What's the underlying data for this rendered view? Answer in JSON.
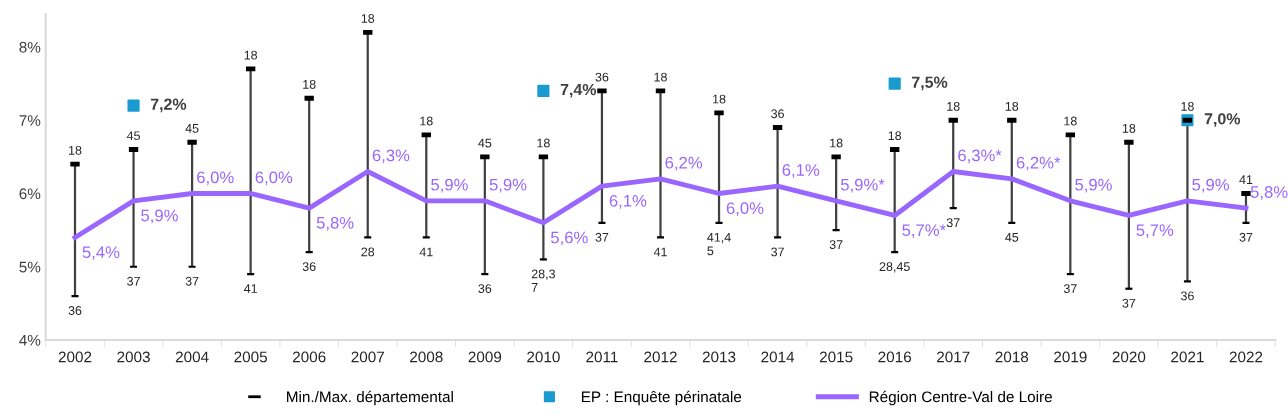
{
  "chart_data": {
    "type": "line",
    "categories": [
      "2002",
      "2003",
      "2004",
      "2005",
      "2006",
      "2007",
      "2008",
      "2009",
      "2010",
      "2011",
      "2012",
      "2013",
      "2014",
      "2015",
      "2016",
      "2017",
      "2018",
      "2019",
      "2020",
      "2021",
      "2022"
    ],
    "series": [
      {
        "name": "EP : Enquête périnatale",
        "type": "scatter",
        "marker": "square",
        "color": "#1a9bd0",
        "values": [
          null,
          7.2,
          null,
          null,
          null,
          null,
          null,
          null,
          7.4,
          null,
          null,
          null,
          null,
          null,
          7.5,
          null,
          null,
          null,
          null,
          7.0,
          null
        ],
        "value_labels": [
          null,
          "7,2%",
          null,
          null,
          null,
          null,
          null,
          null,
          "7,4%",
          null,
          null,
          null,
          null,
          null,
          "7,5%",
          null,
          null,
          null,
          null,
          "7,0%",
          null
        ]
      },
      {
        "name": "Région Centre-Val de Loire",
        "marker": "none",
        "color": "#9966ff",
        "values": [
          5.4,
          5.9,
          6.0,
          6.0,
          5.8,
          6.3,
          5.9,
          5.9,
          5.6,
          6.1,
          6.2,
          6.0,
          6.1,
          5.9,
          5.7,
          6.3,
          6.2,
          5.9,
          5.7,
          5.9,
          5.8
        ],
        "errors": [
          [
            4.6,
            6.4
          ],
          [
            5.0,
            6.6
          ],
          [
            5.0,
            6.7
          ],
          [
            4.9,
            7.7
          ],
          [
            5.2,
            7.3
          ],
          [
            5.4,
            8.2
          ],
          [
            5.4,
            6.8
          ],
          [
            4.9,
            6.5
          ],
          [
            5.1,
            6.5
          ],
          [
            5.6,
            7.4
          ],
          [
            5.4,
            7.4
          ],
          [
            5.6,
            7.1
          ],
          [
            5.4,
            6.9
          ],
          [
            5.5,
            6.5
          ],
          [
            5.2,
            6.6
          ],
          [
            5.8,
            7.0
          ],
          [
            5.6,
            7.0
          ],
          [
            4.9,
            6.8
          ],
          [
            4.7,
            6.7
          ],
          [
            4.8,
            7.0
          ],
          [
            5.6,
            6.0
          ]
        ],
        "value_labels": [
          "5,4%",
          "5,9%",
          "6,0%",
          "6,0%",
          "5,8%",
          "6,3%",
          "5,9%",
          "5,9%",
          "5,6%",
          "6,1%",
          "6,2%",
          "6,0%",
          "6,1%",
          "5,9%*",
          "5,7%*",
          "6,3%*",
          "6,2%*",
          "5,9%",
          "5,7%",
          "5,9%",
          "5,8%"
        ]
      }
    ],
    "annotations": [
      "Min./Max. départemental",
      {
        "text": "18",
        "x": "2002",
        "y": 6.4
      },
      {
        "text": "36",
        "x": "2002",
        "y": 4.6
      },
      {
        "text": "45",
        "x": "2003",
        "y": 6.6
      },
      {
        "text": "37",
        "x": "2003",
        "y": 5.0
      },
      {
        "text": "45",
        "x": "2004",
        "y": 6.7
      },
      {
        "text": "37",
        "x": "2004",
        "y": 5.0
      },
      {
        "text": "18",
        "x": "2005",
        "y": 7.7
      },
      {
        "text": "41",
        "x": "2005",
        "y": 4.9
      },
      {
        "text": "18",
        "x": "2006",
        "y": 7.3
      },
      {
        "text": "36",
        "x": "2006",
        "y": 5.2
      },
      {
        "text": "18",
        "x": "2007",
        "y": 8.2
      },
      {
        "text": "28",
        "x": "2007",
        "y": 5.4
      },
      {
        "text": "18",
        "x": "2008",
        "y": 6.8
      },
      {
        "text": "41",
        "x": "2008",
        "y": 5.4
      },
      {
        "text": "45",
        "x": "2009",
        "y": 6.5
      },
      {
        "text": "36",
        "x": "2009",
        "y": 4.9
      },
      {
        "text": "18",
        "x": "2010",
        "y": 6.5
      },
      {
        "text": "28,3\n7",
        "x": "2010",
        "y": 5.1
      },
      {
        "text": "36",
        "x": "2011",
        "y": 7.4
      },
      {
        "text": "37",
        "x": "2011",
        "y": 5.6
      },
      {
        "text": "18",
        "x": "2012",
        "y": 7.4
      },
      {
        "text": "41",
        "x": "2012",
        "y": 5.4
      },
      {
        "text": "18",
        "x": "2013",
        "y": 7.1
      },
      {
        "text": "41,4\n5",
        "x": "2013",
        "y": 5.6
      },
      {
        "text": "36",
        "x": "2014",
        "y": 6.9
      },
      {
        "text": "37",
        "x": "2014",
        "y": 5.4
      },
      {
        "text": "18",
        "x": "2015",
        "y": 6.5
      },
      {
        "text": "37",
        "x": "2015",
        "y": 5.5
      },
      {
        "text": "18",
        "x": "2016",
        "y": 6.6
      },
      {
        "text": "28,45",
        "x": "2016",
        "y": 5.2
      },
      {
        "text": "18",
        "x": "2017",
        "y": 7.0
      },
      {
        "text": "37",
        "x": "2017",
        "y": 5.8
      },
      {
        "text": "18",
        "x": "2018",
        "y": 7.0
      },
      {
        "text": "45",
        "x": "2018",
        "y": 5.6
      },
      {
        "text": "18",
        "x": "2019",
        "y": 6.8
      },
      {
        "text": "37",
        "x": "2019",
        "y": 4.9
      },
      {
        "text": "18",
        "x": "2020",
        "y": 6.7
      },
      {
        "text": "37",
        "x": "2020",
        "y": 4.7
      },
      {
        "text": "18",
        "x": "2021",
        "y": 7.0
      },
      {
        "text": "36",
        "x": "2021",
        "y": 4.8
      },
      {
        "text": "41",
        "x": "2022",
        "y": 6.0
      },
      {
        "text": "37",
        "x": "2022",
        "y": 5.6
      }
    ],
    "ylim": [
      4,
      8.45
    ],
    "yticks": [
      {
        "value": 4,
        "label": "4%"
      },
      {
        "value": 5,
        "label": "5%"
      },
      {
        "value": 6,
        "label": "6%"
      },
      {
        "value": 7,
        "label": "7%"
      },
      {
        "value": 8,
        "label": "8%"
      }
    ],
    "grid": false,
    "legend": "bottom"
  }
}
